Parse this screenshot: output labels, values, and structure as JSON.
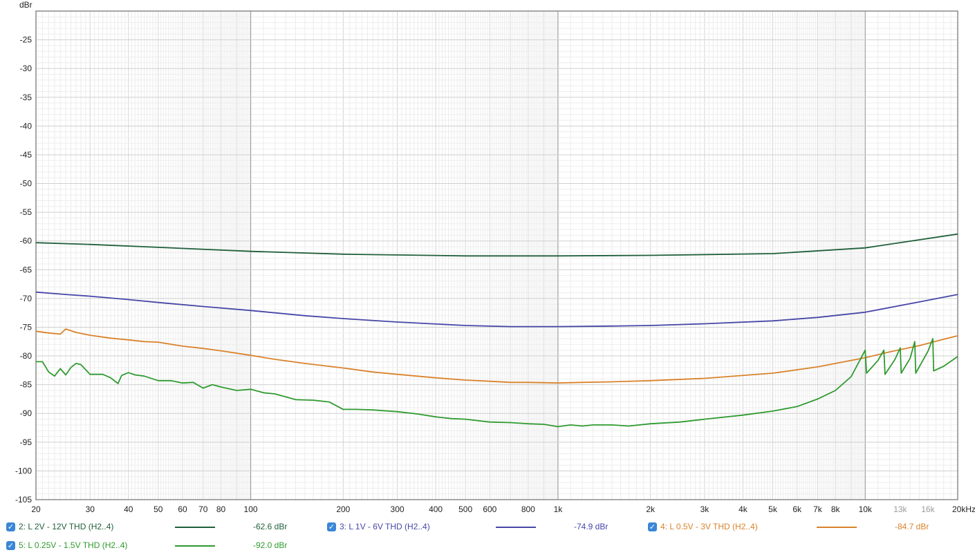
{
  "chart_data": {
    "type": "line",
    "ylabel": "dBr",
    "xscale": "log",
    "xlim": [
      20,
      20000
    ],
    "ylim": [
      -105,
      -20
    ],
    "yticks": [
      -25,
      -30,
      -35,
      -40,
      -45,
      -50,
      -55,
      -60,
      -65,
      -70,
      -75,
      -80,
      -85,
      -90,
      -95,
      -100,
      -105
    ],
    "xticks": [
      {
        "value": 20,
        "label": "20"
      },
      {
        "value": 30,
        "label": "30"
      },
      {
        "value": 40,
        "label": "40"
      },
      {
        "value": 50,
        "label": "50"
      },
      {
        "value": 60,
        "label": "60"
      },
      {
        "value": 70,
        "label": "70"
      },
      {
        "value": 80,
        "label": "80"
      },
      {
        "value": 100,
        "label": "100"
      },
      {
        "value": 200,
        "label": "200"
      },
      {
        "value": 300,
        "label": "300"
      },
      {
        "value": 400,
        "label": "400"
      },
      {
        "value": 500,
        "label": "500"
      },
      {
        "value": 600,
        "label": "600"
      },
      {
        "value": 800,
        "label": "800"
      },
      {
        "value": 1000,
        "label": "1k"
      },
      {
        "value": 2000,
        "label": "2k"
      },
      {
        "value": 3000,
        "label": "3k"
      },
      {
        "value": 4000,
        "label": "4k"
      },
      {
        "value": 5000,
        "label": "5k"
      },
      {
        "value": 6000,
        "label": "6k"
      },
      {
        "value": 7000,
        "label": "7k"
      },
      {
        "value": 8000,
        "label": "8k"
      },
      {
        "value": 10000,
        "label": "10k"
      },
      {
        "value": 13000,
        "label": "13k",
        "minor": true
      },
      {
        "value": 16000,
        "label": "16k",
        "minor": true
      },
      {
        "value": 20000,
        "label": "20kHz"
      }
    ],
    "grid": true,
    "series": [
      {
        "name": "2: L 2V - 12V THD (H2..4)",
        "color": "#1f5f3a",
        "value_label": "-62.6 dBr",
        "x": [
          20,
          30,
          50,
          100,
          200,
          500,
          1000,
          2000,
          5000,
          10000,
          20000
        ],
        "y": [
          -60.3,
          -60.6,
          -61.1,
          -61.8,
          -62.3,
          -62.6,
          -62.6,
          -62.5,
          -62.2,
          -61.2,
          -58.8
        ]
      },
      {
        "name": "3: L 1V - 6V THD (H2..4)",
        "color": "#4646a8",
        "value_label": "-74.9 dBr",
        "x": [
          20,
          25,
          30,
          40,
          50,
          70,
          100,
          150,
          200,
          300,
          500,
          700,
          1000,
          1500,
          2000,
          3000,
          5000,
          7000,
          10000,
          15000,
          20000
        ],
        "y": [
          -68.9,
          -69.3,
          -69.6,
          -70.2,
          -70.7,
          -71.4,
          -72.1,
          -73.0,
          -73.5,
          -74.1,
          -74.7,
          -74.9,
          -74.9,
          -74.8,
          -74.7,
          -74.4,
          -73.9,
          -73.3,
          -72.4,
          -70.6,
          -69.3
        ]
      },
      {
        "name": "4: L 0.5V - 3V THD (H2..4)",
        "color": "#d9822b",
        "value_label": "-84.7 dBr",
        "x": [
          20,
          22,
          24,
          25,
          27,
          30,
          35,
          40,
          45,
          50,
          60,
          70,
          80,
          100,
          120,
          150,
          200,
          250,
          300,
          400,
          500,
          600,
          700,
          800,
          1000,
          1200,
          1500,
          2000,
          3000,
          5000,
          7000,
          10000,
          12000,
          15000,
          18000,
          20000
        ],
        "y": [
          -75.7,
          -76.0,
          -76.2,
          -75.3,
          -75.9,
          -76.4,
          -76.9,
          -77.2,
          -77.5,
          -77.6,
          -78.3,
          -78.7,
          -79.1,
          -79.9,
          -80.6,
          -81.3,
          -82.1,
          -82.8,
          -83.2,
          -83.8,
          -84.2,
          -84.4,
          -84.6,
          -84.6,
          -84.7,
          -84.6,
          -84.5,
          -84.3,
          -83.9,
          -83.0,
          -81.9,
          -80.3,
          -79.3,
          -78.2,
          -77.1,
          -76.5
        ]
      },
      {
        "name": "5: L 0.25V - 1.5V THD (H2..4)",
        "color": "#2f9a2f",
        "value_label": "-92.0 dBr",
        "x": [
          20,
          21,
          22,
          23,
          24,
          25,
          26,
          27,
          28,
          30,
          33,
          35,
          37,
          38,
          40,
          42,
          45,
          50,
          55,
          60,
          65,
          70,
          75,
          80,
          90,
          100,
          110,
          120,
          140,
          160,
          180,
          200,
          220,
          250,
          300,
          350,
          400,
          450,
          500,
          600,
          700,
          800,
          900,
          1000,
          1100,
          1200,
          1300,
          1500,
          1700,
          2000,
          2500,
          3000,
          4000,
          5000,
          6000,
          7000,
          8000,
          9000,
          10000,
          10100,
          11000,
          11500,
          11600,
          12500,
          13000,
          13100,
          14000,
          14500,
          14600,
          16000,
          16600,
          16700,
          18000,
          20000
        ],
        "y": [
          -81.0,
          -81.0,
          -82.8,
          -83.5,
          -82.2,
          -83.3,
          -82.0,
          -81.3,
          -81.5,
          -83.2,
          -83.2,
          -83.8,
          -84.8,
          -83.4,
          -82.9,
          -83.3,
          -83.5,
          -84.3,
          -84.3,
          -84.7,
          -84.6,
          -85.6,
          -85.0,
          -85.4,
          -86.0,
          -85.8,
          -86.4,
          -86.6,
          -87.6,
          -87.7,
          -88.0,
          -89.3,
          -89.3,
          -89.4,
          -89.7,
          -90.1,
          -90.6,
          -90.9,
          -91.0,
          -91.5,
          -91.6,
          -91.8,
          -91.9,
          -92.3,
          -92.0,
          -92.2,
          -92.0,
          -92.0,
          -92.2,
          -91.8,
          -91.5,
          -91.0,
          -90.3,
          -89.6,
          -88.8,
          -87.5,
          -86.0,
          -83.6,
          -79.0,
          -83.0,
          -80.8,
          -79.0,
          -83.2,
          -80.6,
          -78.6,
          -83.0,
          -80.4,
          -77.5,
          -83.0,
          -79.2,
          -77.0,
          -82.6,
          -81.8,
          -80.1
        ]
      }
    ]
  }
}
